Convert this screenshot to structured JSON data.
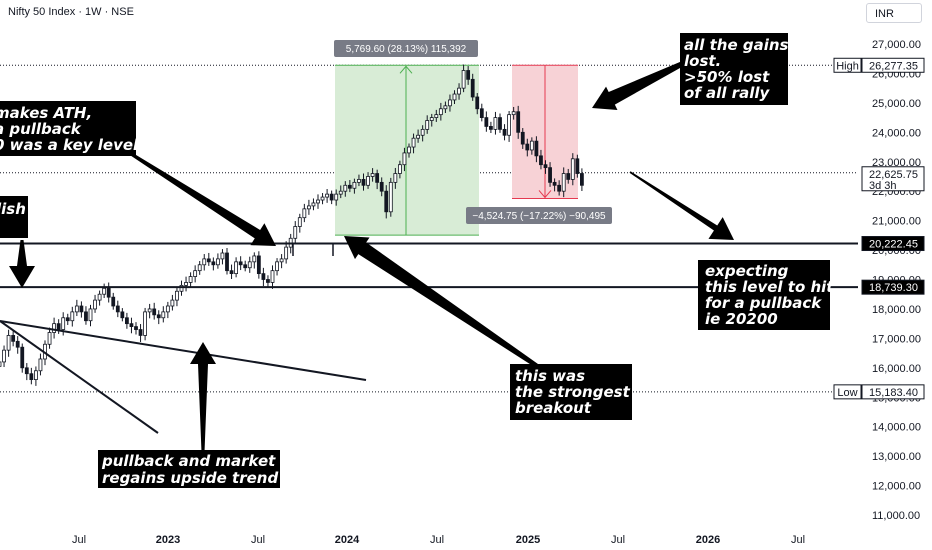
{
  "header": {
    "title": "Nifty 50 Index · 1W · NSE",
    "currency": "INR"
  },
  "chart_data": {
    "type": "candlestick",
    "y_ticks": [
      11000,
      12000,
      13000,
      14000,
      15000,
      16000,
      17000,
      18000,
      19000,
      20000,
      21000,
      22000,
      23000,
      24000,
      25000,
      26000,
      27000
    ],
    "y_tick_labels": [
      "11,000.00",
      "12,000.00",
      "13,000.00",
      "14,000.00",
      "15,000.00",
      "16,000.00",
      "17,000.00",
      "18,000.00",
      "19,000.00",
      "20,000.00",
      "21,000.00",
      "22,000.00",
      "23,000.00",
      "24,000.00",
      "25,000.00",
      "26,000.00",
      "27,000.00"
    ],
    "x_labels": [
      {
        "text": "Jul",
        "bold": false
      },
      {
        "text": "2023",
        "bold": true
      },
      {
        "text": "Jul",
        "bold": false
      },
      {
        "text": "2024",
        "bold": true
      },
      {
        "text": "Jul",
        "bold": false
      },
      {
        "text": "2025",
        "bold": true
      },
      {
        "text": "Jul",
        "bold": false
      },
      {
        "text": "2026",
        "bold": true
      },
      {
        "text": "Jul",
        "bold": false
      }
    ],
    "price_tags": [
      {
        "name": "High",
        "value": 26277.35,
        "text": "26,277.35"
      },
      {
        "name": "",
        "value": 22625.75,
        "text": "22,625.75",
        "sub": "3d 3h"
      },
      {
        "name": "",
        "value": 20222.45,
        "text": "20,222.45"
      },
      {
        "name": "",
        "value": 18739.3,
        "text": "18,739.30"
      },
      {
        "name": "Low",
        "value": 15183.4,
        "text": "15,183.40"
      }
    ],
    "levels": [
      20222.45,
      18739.3
    ],
    "measure_up": {
      "text": "5,769.60 (28.13%) 115,392",
      "from": 20507.75,
      "to": 26277.35
    },
    "measure_down": {
      "text": "−4,524.75 (−17.22%) −90,495",
      "from": 26277.35,
      "to": 21752.6
    },
    "candles_close": [
      16200,
      16600,
      17100,
      16900,
      16700,
      16000,
      15800,
      15600,
      15900,
      16300,
      16800,
      17200,
      17500,
      17300,
      17700,
      17600,
      17900,
      18100,
      17900,
      17600,
      18000,
      18300,
      18500,
      18700,
      18400,
      18100,
      17900,
      17700,
      17500,
      17400,
      17300,
      17100,
      17900,
      18000,
      17800,
      17700,
      17900,
      18100,
      18300,
      18600,
      18800,
      18900,
      19100,
      19300,
      19500,
      19700,
      19600,
      19500,
      19700,
      19900,
      19300,
      19200,
      19600,
      19500,
      19400,
      19600,
      19800,
      19200,
      19000,
      18900,
      19300,
      19600,
      19700,
      20100,
      20400,
      20800,
      21100,
      21400,
      21500,
      21600,
      21700,
      21800,
      21900,
      21700,
      21900,
      22000,
      22200,
      22100,
      22300,
      22400,
      22200,
      22500,
      22600,
      22300,
      22000,
      21300,
      22300,
      22600,
      22900,
      23300,
      23500,
      23800,
      23900,
      24100,
      24400,
      24500,
      24600,
      24800,
      24900,
      25100,
      25300,
      25500,
      26100,
      25800,
      25200,
      24800,
      24500,
      24200,
      24100,
      24500,
      24100,
      23900,
      24600,
      24700,
      24000,
      23600,
      23400,
      23700,
      23200,
      22900,
      22800,
      22300,
      22200,
      22000,
      22600,
      22400,
      23100,
      22600,
      22200
    ],
    "notes": [
      {
        "id": "ath",
        "lines": [
          "makes ATH,",
          "a pullback",
          "0 was a key level"
        ]
      },
      {
        "id": "bullish",
        "lines": [
          "lish"
        ]
      },
      {
        "id": "gains",
        "lines": [
          "all the gains",
          "lost.",
          ">50% lost",
          "of all rally"
        ]
      },
      {
        "id": "breakout",
        "lines": [
          "this was",
          "the strongest",
          "breakout"
        ]
      },
      {
        "id": "expecting",
        "lines": [
          "expecting",
          "this level to hit",
          "for a pullback",
          "ie 20200"
        ]
      },
      {
        "id": "pullback",
        "lines": [
          "pullback and market",
          "regains upside trend"
        ]
      }
    ],
    "colors": {
      "up": "#089981",
      "down": "#f23645",
      "candle": "#131722",
      "measure_up_fill": "#d8ecd6",
      "measure_down_fill": "#f7d2d6",
      "measure_up_line": "#4caf50",
      "measure_down_line": "#e53950"
    }
  }
}
